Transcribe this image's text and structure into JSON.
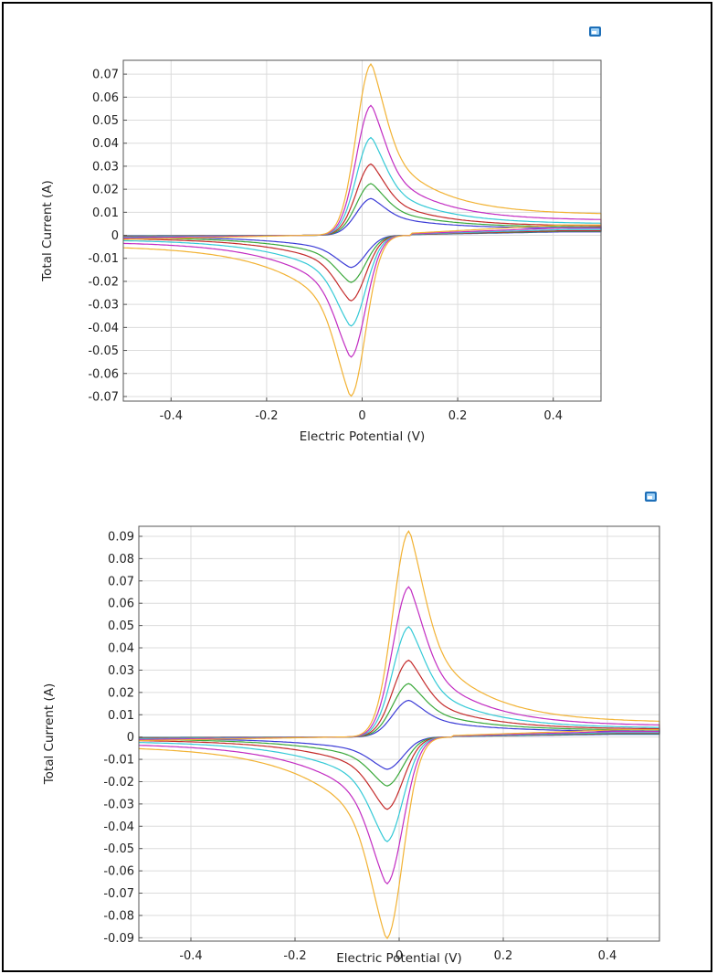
{
  "chart_data": [
    {
      "type": "line",
      "title": "",
      "xlabel": "Electric Potential (V)",
      "ylabel": "Total Current (A)",
      "xlim": [
        -0.5,
        0.5
      ],
      "ylim": [
        -0.072,
        0.076
      ],
      "xticks": [
        -0.4,
        -0.2,
        0,
        0.2,
        0.4
      ],
      "xtick_labels": [
        "-0.4",
        "-0.2",
        "0",
        "0.2",
        "0.4"
      ],
      "yticks": [
        -0.07,
        -0.06,
        -0.05,
        -0.04,
        -0.03,
        -0.02,
        -0.01,
        0,
        0.01,
        0.02,
        0.03,
        0.04,
        0.05,
        0.06,
        0.07
      ],
      "ytick_labels": [
        "-0.07",
        "-0.06",
        "-0.05",
        "-0.04",
        "-0.03",
        "-0.02",
        "-0.01",
        "0",
        "0.01",
        "0.02",
        "0.03",
        "0.04",
        "0.05",
        "0.06",
        "0.07"
      ],
      "grid": true,
      "series": [
        {
          "name": "blue",
          "color": "#3b3bd6",
          "ipa": 0.016,
          "ipc": -0.014,
          "tail_fwd": 0.003,
          "tail_rev": -0.0005
        },
        {
          "name": "green",
          "color": "#3aa83a",
          "ipa": 0.0225,
          "ipc": -0.0205,
          "tail_fwd": 0.0035,
          "tail_rev": -0.0008
        },
        {
          "name": "red",
          "color": "#c42a2a",
          "ipa": 0.031,
          "ipc": -0.0285,
          "tail_fwd": 0.004,
          "tail_rev": -0.0012
        },
        {
          "name": "cyan",
          "color": "#33c9d6",
          "ipa": 0.0425,
          "ipc": -0.0395,
          "tail_fwd": 0.005,
          "tail_rev": -0.0018
        },
        {
          "name": "magenta",
          "color": "#c22cc2",
          "ipa": 0.0565,
          "ipc": -0.053,
          "tail_fwd": 0.0065,
          "tail_rev": -0.0028
        },
        {
          "name": "orange",
          "color": "#f2b233",
          "ipa": 0.0745,
          "ipc": -0.07,
          "tail_fwd": 0.009,
          "tail_rev": -0.0045
        }
      ]
    },
    {
      "type": "line",
      "title": "",
      "xlabel": "Electric Potential (V)",
      "ylabel": "Total Current (A)",
      "xlim": [
        -0.5,
        0.5
      ],
      "ylim": [
        -0.0915,
        0.0945
      ],
      "xticks": [
        -0.4,
        -0.2,
        0,
        0.2,
        0.4
      ],
      "xtick_labels": [
        "-0.4",
        "-0.2",
        "0",
        "0.2",
        "0.4"
      ],
      "yticks": [
        -0.09,
        -0.08,
        -0.07,
        -0.06,
        -0.05,
        -0.04,
        -0.03,
        -0.02,
        -0.01,
        0,
        0.01,
        0.02,
        0.03,
        0.04,
        0.05,
        0.06,
        0.07,
        0.08,
        0.09
      ],
      "ytick_labels": [
        "-0.09",
        "-0.08",
        "-0.07",
        "-0.06",
        "-0.05",
        "-0.04",
        "-0.03",
        "-0.02",
        "-0.01",
        "0",
        "0.01",
        "0.02",
        "0.03",
        "0.04",
        "0.05",
        "0.06",
        "0.07",
        "0.08",
        "0.09"
      ],
      "grid": true,
      "series": [
        {
          "name": "blue",
          "color": "#3b3bd6",
          "ipa": 0.0165,
          "ipc": -0.0145,
          "tail_fwd": 0.0025,
          "tail_rev": -0.0005
        },
        {
          "name": "green",
          "color": "#3aa83a",
          "ipa": 0.024,
          "ipc": -0.022,
          "tail_fwd": 0.003,
          "tail_rev": -0.0008
        },
        {
          "name": "red",
          "color": "#c42a2a",
          "ipa": 0.0345,
          "ipc": -0.0325,
          "tail_fwd": 0.0035,
          "tail_rev": -0.0012
        },
        {
          "name": "cyan",
          "color": "#33c9d6",
          "ipa": 0.0495,
          "ipc": -0.047,
          "tail_fwd": 0.004,
          "tail_rev": -0.0018
        },
        {
          "name": "magenta",
          "color": "#c22cc2",
          "ipa": 0.0675,
          "ipc": -0.066,
          "tail_fwd": 0.005,
          "tail_rev": -0.0028
        },
        {
          "name": "orange",
          "color": "#f2b233",
          "ipa": 0.0925,
          "ipc": -0.0905,
          "tail_fwd": 0.0065,
          "tail_rev": -0.004
        }
      ]
    }
  ],
  "icons": [
    "export-image-icon",
    "export-image-icon"
  ]
}
